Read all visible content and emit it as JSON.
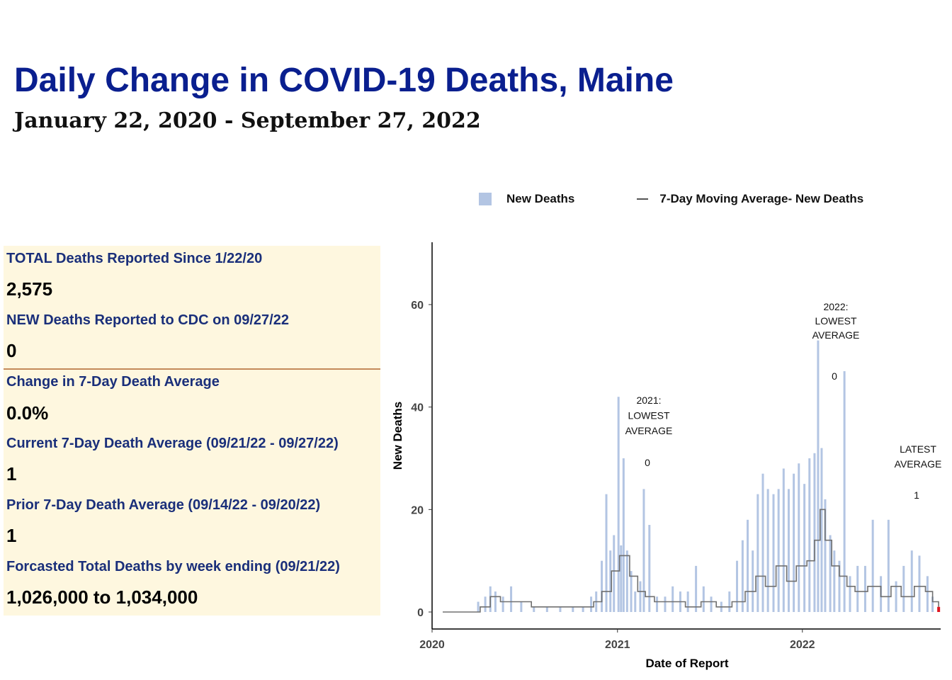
{
  "header": {
    "title": "Daily Change in COVID-19 Deaths, Maine",
    "subtitle": "January 22, 2020 - September 27, 2022"
  },
  "stats": [
    {
      "label": "TOTAL Deaths Reported Since 1/22/20",
      "value": "2,575"
    },
    {
      "label": "NEW Deaths Reported to CDC on 09/27/22",
      "value": "0"
    },
    {
      "label": "Change in 7-Day Death Average",
      "value": "0.0%"
    },
    {
      "label": "Current 7-Day Death Average (09/21/22 - 09/27/22)",
      "value": "1"
    },
    {
      "label": "Prior 7-Day Death Average (09/14/22 - 09/20/22)",
      "value": "1"
    },
    {
      "label": "Forcasted Total Deaths by week ending (09/21/22)",
      "value": "1,026,000 to 1,034,000"
    }
  ],
  "colors": {
    "title": "#0a1f8f",
    "bars": "#b3c5e3",
    "moving_average": "#707070",
    "latest": "#e0151f",
    "panel_bg": "#fef7df",
    "panel_text": "#1a2f7a"
  },
  "chart_data": {
    "type": "bar",
    "title": "",
    "xlabel": "Date of Report",
    "ylabel": "New Deaths",
    "xlim": [
      "2020-01-22",
      "2022-09-27"
    ],
    "ylim": [
      0,
      70
    ],
    "x_ticks": [
      "2020",
      "2021",
      "2022"
    ],
    "y_ticks": [
      0,
      20,
      40,
      60
    ],
    "grid": false,
    "legend": {
      "position": "top",
      "entries": [
        "New Deaths",
        "7-Day Moving Average- New Deaths"
      ]
    },
    "annotations": [
      {
        "lines": [
          "2021:",
          "LOWEST",
          "AVERAGE"
        ],
        "value": "0"
      },
      {
        "lines": [
          "2022:",
          "LOWEST",
          "AVERAGE"
        ],
        "value": "0"
      },
      {
        "lines": [
          "LATEST",
          "AVERAGE"
        ],
        "value": "1"
      }
    ],
    "series": [
      {
        "name": "New Deaths",
        "type": "bar",
        "points": [
          [
            "2020-04-01",
            2
          ],
          [
            "2020-04-15",
            3
          ],
          [
            "2020-04-25",
            5
          ],
          [
            "2020-05-05",
            4
          ],
          [
            "2020-05-20",
            3
          ],
          [
            "2020-06-05",
            5
          ],
          [
            "2020-06-25",
            2
          ],
          [
            "2020-07-20",
            1
          ],
          [
            "2020-08-15",
            1
          ],
          [
            "2020-09-10",
            1
          ],
          [
            "2020-10-05",
            1
          ],
          [
            "2020-10-25",
            1
          ],
          [
            "2020-11-10",
            3
          ],
          [
            "2020-11-20",
            4
          ],
          [
            "2020-12-01",
            10
          ],
          [
            "2020-12-10",
            23
          ],
          [
            "2020-12-18",
            12
          ],
          [
            "2020-12-25",
            15
          ],
          [
            "2021-01-03",
            42
          ],
          [
            "2021-01-08",
            13
          ],
          [
            "2021-01-13",
            30
          ],
          [
            "2021-01-20",
            12
          ],
          [
            "2021-01-28",
            8
          ],
          [
            "2021-02-05",
            4
          ],
          [
            "2021-02-15",
            6
          ],
          [
            "2021-02-22",
            24
          ],
          [
            "2021-03-05",
            17
          ],
          [
            "2021-03-20",
            3
          ],
          [
            "2021-04-05",
            3
          ],
          [
            "2021-04-20",
            5
          ],
          [
            "2021-05-05",
            4
          ],
          [
            "2021-05-20",
            4
          ],
          [
            "2021-06-05",
            9
          ],
          [
            "2021-06-20",
            5
          ],
          [
            "2021-07-05",
            3
          ],
          [
            "2021-07-25",
            2
          ],
          [
            "2021-08-10",
            4
          ],
          [
            "2021-08-25",
            10
          ],
          [
            "2021-09-05",
            14
          ],
          [
            "2021-09-15",
            18
          ],
          [
            "2021-09-25",
            12
          ],
          [
            "2021-10-05",
            23
          ],
          [
            "2021-10-15",
            27
          ],
          [
            "2021-10-25",
            24
          ],
          [
            "2021-11-05",
            23
          ],
          [
            "2021-11-15",
            24
          ],
          [
            "2021-11-25",
            28
          ],
          [
            "2021-12-05",
            24
          ],
          [
            "2021-12-15",
            27
          ],
          [
            "2021-12-25",
            29
          ],
          [
            "2022-01-05",
            25
          ],
          [
            "2022-01-15",
            30
          ],
          [
            "2022-01-25",
            31
          ],
          [
            "2022-02-01",
            53
          ],
          [
            "2022-02-08",
            32
          ],
          [
            "2022-02-15",
            22
          ],
          [
            "2022-02-25",
            15
          ],
          [
            "2022-03-05",
            12
          ],
          [
            "2022-03-15",
            10
          ],
          [
            "2022-03-25",
            47
          ],
          [
            "2022-04-05",
            7
          ],
          [
            "2022-04-20",
            9
          ],
          [
            "2022-05-05",
            9
          ],
          [
            "2022-05-20",
            18
          ],
          [
            "2022-06-05",
            7
          ],
          [
            "2022-06-20",
            18
          ],
          [
            "2022-07-05",
            6
          ],
          [
            "2022-07-20",
            9
          ],
          [
            "2022-08-05",
            12
          ],
          [
            "2022-08-20",
            11
          ],
          [
            "2022-09-05",
            7
          ],
          [
            "2022-09-15",
            3
          ],
          [
            "2022-09-27",
            0
          ]
        ]
      },
      {
        "name": "7-Day Moving Average- New Deaths",
        "type": "line",
        "points": [
          [
            "2020-01-22",
            0
          ],
          [
            "2020-03-25",
            0
          ],
          [
            "2020-04-05",
            1
          ],
          [
            "2020-04-25",
            3
          ],
          [
            "2020-05-15",
            2
          ],
          [
            "2020-06-15",
            2
          ],
          [
            "2020-07-15",
            1
          ],
          [
            "2020-09-15",
            1
          ],
          [
            "2020-10-25",
            1
          ],
          [
            "2020-11-15",
            2
          ],
          [
            "2020-12-01",
            4
          ],
          [
            "2020-12-20",
            8
          ],
          [
            "2021-01-05",
            11
          ],
          [
            "2021-01-25",
            7
          ],
          [
            "2021-02-10",
            4
          ],
          [
            "2021-02-25",
            3
          ],
          [
            "2021-03-15",
            2
          ],
          [
            "2021-04-15",
            2
          ],
          [
            "2021-05-15",
            1
          ],
          [
            "2021-06-15",
            2
          ],
          [
            "2021-07-15",
            1
          ],
          [
            "2021-08-15",
            2
          ],
          [
            "2021-09-10",
            4
          ],
          [
            "2021-10-01",
            7
          ],
          [
            "2021-10-20",
            5
          ],
          [
            "2021-11-10",
            9
          ],
          [
            "2021-12-01",
            6
          ],
          [
            "2021-12-20",
            9
          ],
          [
            "2022-01-10",
            10
          ],
          [
            "2022-01-25",
            14
          ],
          [
            "2022-02-05",
            20
          ],
          [
            "2022-02-15",
            14
          ],
          [
            "2022-02-28",
            9
          ],
          [
            "2022-03-15",
            7
          ],
          [
            "2022-03-30",
            5
          ],
          [
            "2022-04-15",
            4
          ],
          [
            "2022-05-10",
            5
          ],
          [
            "2022-06-05",
            3
          ],
          [
            "2022-06-25",
            5
          ],
          [
            "2022-07-15",
            3
          ],
          [
            "2022-08-10",
            5
          ],
          [
            "2022-09-01",
            4
          ],
          [
            "2022-09-15",
            2
          ],
          [
            "2022-09-27",
            1
          ]
        ]
      }
    ]
  }
}
